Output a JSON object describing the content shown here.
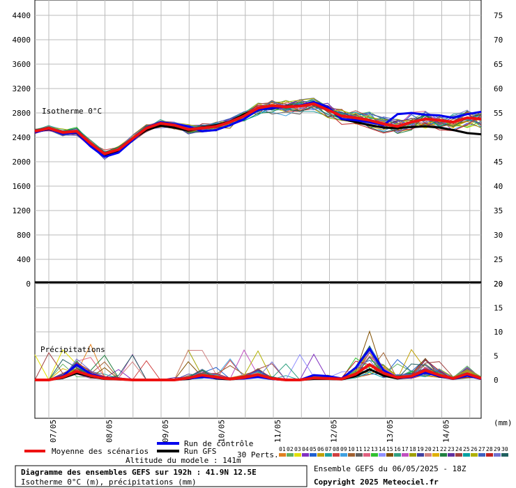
{
  "chart_data": {
    "type": "line",
    "title": "Diagramme des ensembles GEFS sur 192h : 41.9N 12.5E",
    "subtitle": "Isotherme 0°C (m), précipitations (mm)",
    "altitude_note": "Altitude du modele : 141m",
    "ensemble_note": "Ensemble GEFS du 06/05/2025 - 18Z",
    "copyright": "Copyright 2025 Meteociel.fr",
    "x_tick_labels": [
      "07/05",
      "08/05",
      "09/05",
      "10/05",
      "11/05",
      "12/05",
      "13/05",
      "14/05"
    ],
    "x_unit_label": "(mm)",
    "isotherm_panel": {
      "label": "Isotherme 0°C",
      "y_left_ticks": [
        "0",
        "400",
        "800",
        "1200",
        "1600",
        "2000",
        "2400",
        "2800",
        "3200",
        "3600",
        "4000",
        "4400"
      ],
      "y_right_ticks": [
        "20",
        "25",
        "30",
        "35",
        "40",
        "45",
        "50",
        "55",
        "60",
        "65",
        "70",
        "75"
      ],
      "ylim": [
        0,
        4600
      ],
      "grid": true
    },
    "precip_panel": {
      "label": "Précipitations",
      "y_right_ticks": [
        "0",
        "5",
        "10",
        "15",
        "20"
      ],
      "ylim": [
        -8,
        20
      ],
      "grid": true
    },
    "x_steps_hours": [
      0,
      6,
      12,
      18,
      24,
      30,
      36,
      42,
      48,
      54,
      60,
      66,
      72,
      78,
      84,
      90,
      96,
      102,
      108,
      114,
      120,
      126,
      132,
      138,
      144,
      150,
      156,
      162,
      168,
      174,
      180,
      186,
      192
    ],
    "series": [
      {
        "name": "Moyenne des scénarios",
        "color": "#ee1111",
        "isotherm": [
          2500,
          2550,
          2480,
          2500,
          2300,
          2130,
          2200,
          2380,
          2550,
          2630,
          2600,
          2530,
          2550,
          2580,
          2650,
          2750,
          2880,
          2920,
          2900,
          2910,
          2950,
          2850,
          2750,
          2720,
          2680,
          2620,
          2580,
          2650,
          2700,
          2680,
          2650,
          2720,
          2700
        ],
        "precip": [
          0,
          0,
          0.6,
          1.8,
          0.9,
          0.3,
          0.2,
          0,
          0,
          0,
          0,
          0.4,
          1.0,
          0.6,
          0.2,
          0.5,
          1.1,
          0.3,
          0,
          0,
          0.4,
          0.3,
          0.2,
          1.2,
          3.2,
          1.4,
          0.5,
          0.8,
          2.0,
          1.0,
          0.3,
          1.3,
          0.3
        ]
      },
      {
        "name": "Run de contrôle",
        "color": "#0000ee",
        "isotherm": [
          2480,
          2540,
          2460,
          2480,
          2250,
          2080,
          2150,
          2350,
          2560,
          2650,
          2620,
          2580,
          2500,
          2520,
          2600,
          2700,
          2850,
          2880,
          2900,
          2920,
          2980,
          2900,
          2700,
          2680,
          2650,
          2600,
          2780,
          2800,
          2770,
          2760,
          2720,
          2780,
          2820
        ],
        "precip": [
          0,
          0,
          0.8,
          3.2,
          1.2,
          0.4,
          0.3,
          0,
          0,
          0,
          0,
          0.3,
          0.6,
          0.4,
          0.2,
          0.3,
          0.6,
          0.2,
          0,
          0,
          1.0,
          0.8,
          0.3,
          2.5,
          6.5,
          2.0,
          0.4,
          0.6,
          1.5,
          0.8,
          0.2,
          0.9,
          0.2
        ]
      },
      {
        "name": "Run GFS",
        "color": "#000000",
        "isotherm": [
          2490,
          2530,
          2470,
          2470,
          2270,
          2100,
          2170,
          2370,
          2520,
          2590,
          2560,
          2510,
          2560,
          2600,
          2660,
          2780,
          2860,
          2870,
          2910,
          2920,
          2960,
          2880,
          2700,
          2650,
          2600,
          2560,
          2550,
          2570,
          2580,
          2560,
          2520,
          2470,
          2450
        ],
        "precip": [
          0,
          0,
          0.4,
          1.4,
          0.7,
          0.2,
          0.1,
          0,
          0,
          0,
          0,
          0.2,
          0.8,
          0.3,
          0.1,
          0.4,
          0.9,
          0.2,
          0,
          0,
          0.2,
          0.2,
          0.1,
          0.8,
          2.2,
          0.9,
          0.3,
          0.6,
          1.7,
          0.7,
          0.3,
          1.0,
          0.2
        ]
      }
    ],
    "legend": {
      "mean_label": "Moyenne des scénarios",
      "control_label": "Run de contrôle",
      "gfs_label": "Run GFS",
      "perts_label": "30 Perts.",
      "pert_numbers": [
        "01",
        "02",
        "03",
        "04",
        "05",
        "06",
        "07",
        "08",
        "09",
        "10",
        "11",
        "12",
        "13",
        "14",
        "15",
        "16",
        "17",
        "18",
        "19",
        "20",
        "21",
        "22",
        "23",
        "24",
        "25",
        "26",
        "27",
        "28",
        "29",
        "30"
      ],
      "pert_colors": [
        "#e08020",
        "#60b060",
        "#e0e000",
        "#8030c0",
        "#2060d0",
        "#c0a000",
        "#20a0a0",
        "#d04040",
        "#40a0e0",
        "#a06030",
        "#606060",
        "#e06080",
        "#30c030",
        "#9090ff",
        "#805000",
        "#30a080",
        "#c050c0",
        "#a0a000",
        "#4040a0",
        "#d08080",
        "#e0b000",
        "#208040",
        "#6030a0",
        "#a04040",
        "#00a0a0",
        "#b0b000",
        "#4060c0",
        "#c02020",
        "#7070d0",
        "#206060"
      ]
    }
  }
}
